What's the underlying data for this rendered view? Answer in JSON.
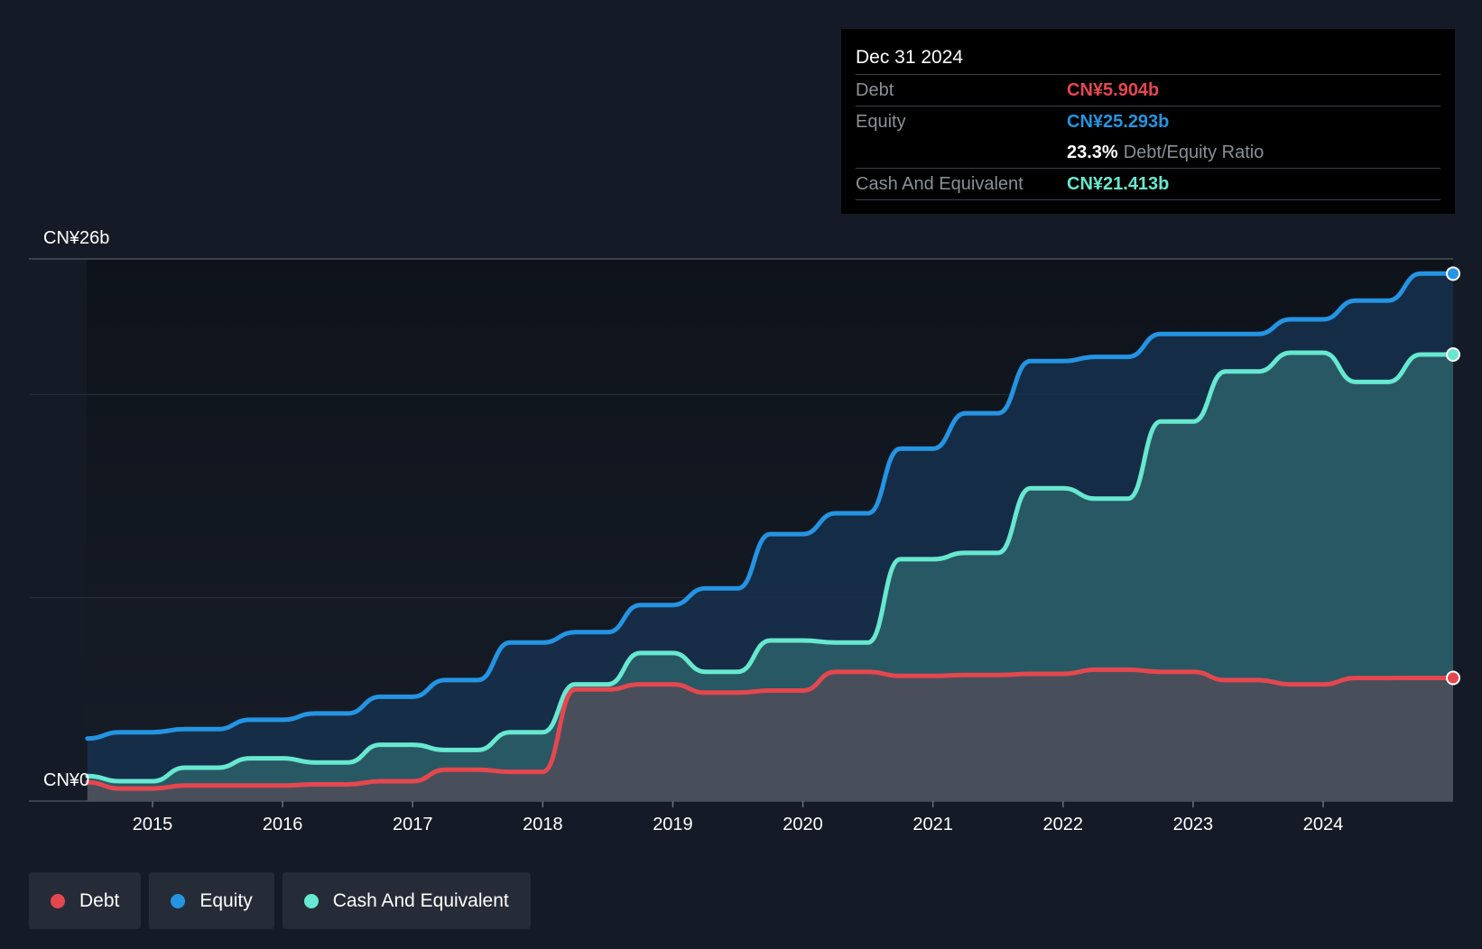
{
  "tooltip": {
    "date": "Dec 31 2024",
    "rows": [
      {
        "label": "Debt",
        "value": "CN¥5.904b"
      },
      {
        "label": "Equity",
        "value": "CN¥25.293b"
      },
      {
        "ratio_value": "23.3%",
        "ratio_label": "Debt/Equity Ratio"
      },
      {
        "label": "Cash And Equivalent",
        "value": "CN¥21.413b"
      }
    ]
  },
  "legend": [
    {
      "label": "Debt",
      "color": "#e5474f"
    },
    {
      "label": "Equity",
      "color": "#2494e3"
    },
    {
      "label": "Cash And Equivalent",
      "color": "#67e8d0"
    }
  ],
  "chart_data": {
    "type": "area",
    "y_top_label": "CN¥26b",
    "y_bottom_label": "CN¥0",
    "ylim": [
      0,
      26
    ],
    "xlim": [
      2014.5,
      2025.0
    ],
    "x_ticks": [
      "2015",
      "2016",
      "2017",
      "2018",
      "2019",
      "2020",
      "2021",
      "2022",
      "2023",
      "2024"
    ],
    "x_tick_values": [
      2015,
      2016,
      2017,
      2018,
      2019,
      2020,
      2021,
      2022,
      2023,
      2024
    ],
    "grid": true,
    "legend_position": "bottom-left",
    "series": [
      {
        "name": "Equity",
        "color": "#2494e3",
        "x": [
          2014.5,
          2014.75,
          2015.0,
          2015.25,
          2015.5,
          2015.75,
          2016.0,
          2016.25,
          2016.5,
          2016.75,
          2017.0,
          2017.25,
          2017.5,
          2017.75,
          2018.0,
          2018.25,
          2018.5,
          2018.75,
          2019.0,
          2019.25,
          2019.5,
          2019.75,
          2020.0,
          2020.25,
          2020.5,
          2020.75,
          2021.0,
          2021.25,
          2021.5,
          2021.75,
          2022.0,
          2022.25,
          2022.5,
          2022.75,
          2023.0,
          2023.25,
          2023.5,
          2023.75,
          2024.0,
          2024.25,
          2024.5,
          2024.75,
          2025.0
        ],
        "values": [
          3.0,
          3.3,
          3.3,
          3.45,
          3.45,
          3.9,
          3.9,
          4.2,
          4.2,
          5.0,
          5.0,
          5.8,
          5.8,
          7.6,
          7.6,
          8.1,
          8.1,
          9.4,
          9.4,
          10.2,
          10.2,
          12.8,
          12.8,
          13.8,
          13.8,
          16.9,
          16.9,
          18.6,
          18.6,
          21.1,
          21.1,
          21.3,
          21.3,
          22.4,
          22.4,
          22.4,
          22.4,
          23.1,
          23.1,
          24.0,
          24.0,
          25.293,
          25.293
        ]
      },
      {
        "name": "Cash And Equivalent",
        "color": "#67e8d0",
        "x": [
          2014.5,
          2014.75,
          2015.0,
          2015.25,
          2015.5,
          2015.75,
          2016.0,
          2016.25,
          2016.5,
          2016.75,
          2017.0,
          2017.25,
          2017.5,
          2017.75,
          2018.0,
          2018.25,
          2018.5,
          2018.75,
          2019.0,
          2019.25,
          2019.5,
          2019.75,
          2020.0,
          2020.25,
          2020.5,
          2020.75,
          2021.0,
          2021.25,
          2021.5,
          2021.75,
          2022.0,
          2022.25,
          2022.5,
          2022.75,
          2023.0,
          2023.25,
          2023.5,
          2023.75,
          2024.0,
          2024.25,
          2024.5,
          2024.75,
          2025.0
        ],
        "values": [
          1.2,
          0.95,
          0.95,
          1.6,
          1.6,
          2.05,
          2.05,
          1.85,
          1.85,
          2.7,
          2.7,
          2.45,
          2.45,
          3.3,
          3.3,
          5.6,
          5.6,
          7.1,
          7.1,
          6.2,
          6.2,
          7.7,
          7.7,
          7.6,
          7.6,
          11.6,
          11.6,
          11.9,
          11.9,
          15.0,
          15.0,
          14.5,
          14.5,
          18.2,
          18.2,
          20.6,
          20.6,
          21.5,
          21.5,
          20.1,
          20.1,
          21.413,
          21.413
        ]
      },
      {
        "name": "Debt",
        "color": "#e5474f",
        "x": [
          2014.5,
          2014.75,
          2015.0,
          2015.25,
          2015.5,
          2015.75,
          2016.0,
          2016.25,
          2016.5,
          2016.75,
          2017.0,
          2017.25,
          2017.5,
          2017.75,
          2018.0,
          2018.25,
          2018.5,
          2018.75,
          2019.0,
          2019.25,
          2019.5,
          2019.75,
          2020.0,
          2020.25,
          2020.5,
          2020.75,
          2021.0,
          2021.25,
          2021.5,
          2021.75,
          2022.0,
          2022.25,
          2022.5,
          2022.75,
          2023.0,
          2023.25,
          2023.5,
          2023.75,
          2024.0,
          2024.25,
          2024.5,
          2024.75,
          2025.0
        ],
        "values": [
          0.9,
          0.6,
          0.6,
          0.75,
          0.75,
          0.75,
          0.75,
          0.8,
          0.8,
          0.95,
          0.95,
          1.5,
          1.5,
          1.4,
          1.4,
          5.35,
          5.35,
          5.6,
          5.6,
          5.2,
          5.2,
          5.3,
          5.3,
          6.2,
          6.2,
          6.0,
          6.0,
          6.05,
          6.05,
          6.1,
          6.1,
          6.3,
          6.3,
          6.2,
          6.2,
          5.8,
          5.8,
          5.6,
          5.6,
          5.9,
          5.9,
          5.904,
          5.904
        ]
      }
    ]
  }
}
